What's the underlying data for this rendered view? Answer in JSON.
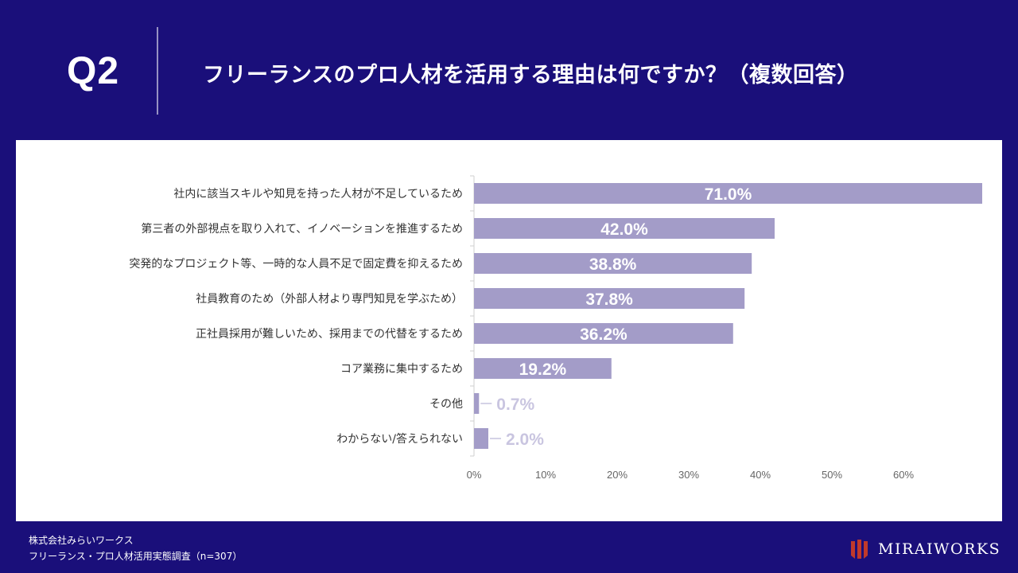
{
  "header": {
    "question_label": "Q2",
    "title": "フリーランスのプロ人材を活用する理由は何ですか？（複数回答）"
  },
  "footer": {
    "company": "株式会社みらいワークス",
    "survey": "フリーランス・プロ人材活用実態調査（n=307）",
    "brand": "MIRAIWORKS"
  },
  "colors": {
    "background": "#1a0f7a",
    "bar": "#a39cc8",
    "label_inside": "#ffffff",
    "label_outside": "#c9c5e0"
  },
  "chart_data": {
    "type": "bar",
    "orientation": "horizontal",
    "categories": [
      "社内に該当スキルや知見を持った人材が不足しているため",
      "第三者の外部視点を取り入れて、イノベーションを推進するため",
      "突発的なプロジェクト等、一時的な人員不足で固定費を抑えるため",
      "社員教育のため（外部人材より専門知見を学ぶため）",
      "正社員採用が難しいため、採用までの代替をするため",
      "コア業務に集中するため",
      "その他",
      "わからない/答えられない"
    ],
    "values": [
      71.0,
      42.0,
      38.8,
      37.8,
      36.2,
      19.2,
      0.7,
      2.0
    ],
    "data_labels": [
      "71.0%",
      "42.0%",
      "38.8%",
      "37.8%",
      "36.2%",
      "19.2%",
      "0.7%",
      "2.0%"
    ],
    "xlim": [
      0,
      60
    ],
    "xticks": [
      0,
      10,
      20,
      30,
      40,
      50,
      60
    ],
    "xtick_labels": [
      "0%",
      "10%",
      "20%",
      "30%",
      "40%",
      "50%",
      "60%"
    ],
    "grid": false,
    "legend": "none"
  }
}
